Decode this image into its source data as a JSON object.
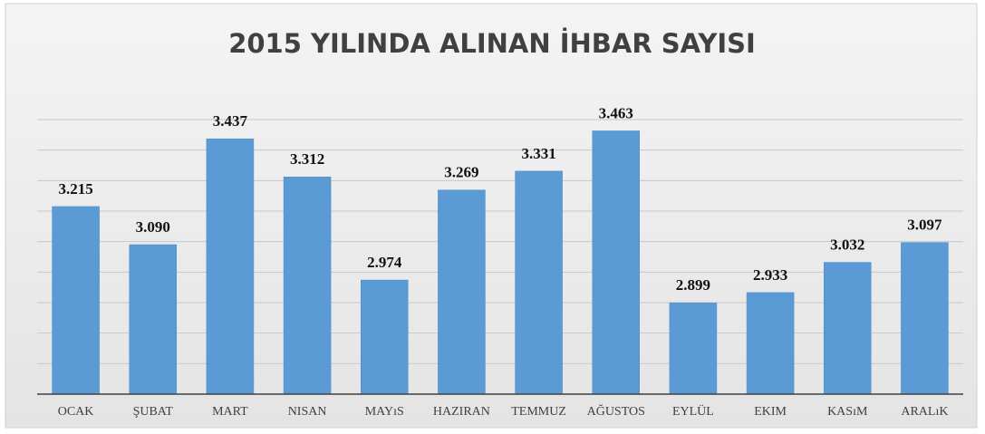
{
  "chart_data": {
    "type": "bar",
    "title": "2015 YILINDA ALINAN İHBAR SAYISI",
    "categories": [
      "OCAK",
      "ŞUBAT",
      "MART",
      "NISAN",
      "MAYıS",
      "HAZIRAN",
      "TEMMUZ",
      "AĞUSTOS",
      "EYLÜL",
      "EKIM",
      "KASıM",
      "ARALıK"
    ],
    "values": [
      3215,
      3090,
      3437,
      3312,
      2974,
      3269,
      3331,
      3463,
      2899,
      2933,
      3032,
      3097
    ],
    "value_labels": [
      "3.215",
      "3.090",
      "3.437",
      "3.312",
      "2.974",
      "3.269",
      "3.331",
      "3.463",
      "2.899",
      "2.933",
      "3.032",
      "3.097"
    ],
    "color": "#5b9bd5",
    "ylim": [
      2600,
      3500
    ],
    "yticks": [
      2600,
      2700,
      2800,
      2900,
      3000,
      3100,
      3200,
      3300,
      3400,
      3500
    ],
    "grid": true
  }
}
